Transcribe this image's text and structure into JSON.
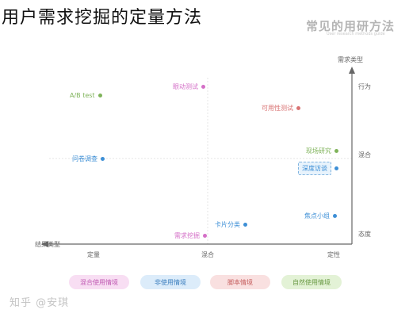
{
  "title": "用户需求挖掘的定量方法",
  "brand": {
    "name": "常见的用研方法",
    "subtitle": "User research methods guide"
  },
  "axes": {
    "y_label": "需求类型",
    "y_ticks": [
      "行为",
      "混合",
      "态度"
    ],
    "x_label": "结果类型",
    "x_ticks": [
      "定量",
      "混合",
      "定性"
    ]
  },
  "methods": [
    {
      "label": "A/B test",
      "color": "#7fb35a"
    },
    {
      "label": "眼动测试",
      "color": "#d46fc7"
    },
    {
      "label": "可用性测试",
      "color": "#d97373"
    },
    {
      "label": "现场研究",
      "color": "#7fb35a"
    },
    {
      "label": "问卷调查",
      "color": "#3d8fd6"
    },
    {
      "label": "深度访谈",
      "color": "#3d8fd6"
    },
    {
      "label": "焦点小组",
      "color": "#3d8fd6"
    },
    {
      "label": "卡片分类",
      "color": "#3d8fd6"
    },
    {
      "label": "需求挖掘",
      "color": "#d46fc7"
    }
  ],
  "legend": [
    "混合使用情境",
    "非使用情境",
    "脚本情境",
    "自然使用情境"
  ],
  "watermark": "知乎 @安琪"
}
